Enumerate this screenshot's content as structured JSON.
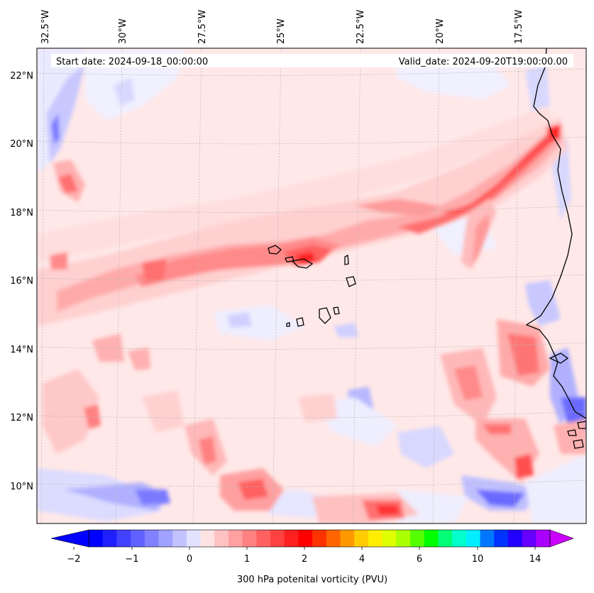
{
  "map": {
    "header": {
      "start_date": "Start date: 2024-09-18_00:00:00",
      "valid_date": "Valid_date: 2024-09-20T19:00:00.00"
    },
    "lon_labels": [
      "32.5°W",
      "30°W",
      "27.5°W",
      "25°W",
      "22.5°W",
      "20°W",
      "17.5°W"
    ],
    "lat_labels": [
      "22°N",
      "20°N",
      "18°N",
      "16°N",
      "14°N",
      "12°N",
      "10°N"
    ],
    "colorbar": {
      "title": "300 hPa potenital vorticity (PVU)",
      "tick_labels": [
        "−2",
        "−1",
        "0",
        "1",
        "2",
        "4",
        "6",
        "10",
        "14"
      ],
      "level_colors": [
        "#0000ff",
        "#2020ff",
        "#4141ff",
        "#6161ff",
        "#8181ff",
        "#a1a1ff",
        "#c2c2ff",
        "#e2e2ff",
        "#ffe2e2",
        "#ffc2c2",
        "#ffa1a1",
        "#ff8181",
        "#ff6161",
        "#ff4141",
        "#ff2020",
        "#ff0000",
        "#ff3300",
        "#ff6600",
        "#ff9900",
        "#ffcc00",
        "#ffee00",
        "#ddff00",
        "#aaff00",
        "#55ff00",
        "#00ff00",
        "#00ff77",
        "#00ffcc",
        "#00eeff",
        "#0077ff",
        "#0033ff",
        "#2200ff",
        "#6600ff",
        "#aa00ff"
      ],
      "under_color": "#0000ff",
      "over_color": "#cc00ff"
    },
    "background_color": "#ffe8e8"
  }
}
